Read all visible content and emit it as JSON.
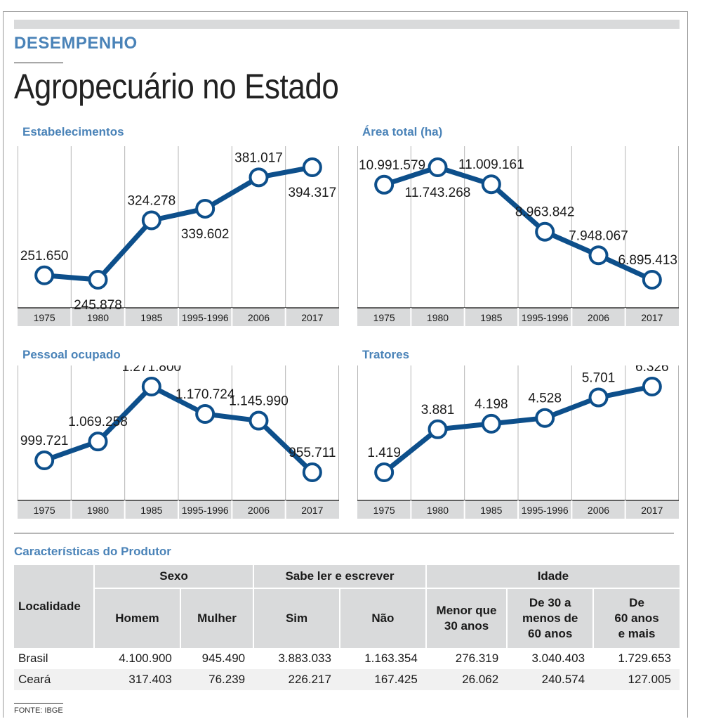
{
  "header": {
    "kicker": "DESEMPENHO",
    "title": "Agropecuário no Estado"
  },
  "colors": {
    "accent": "#4a83b8",
    "line": "#0d4f8b",
    "band": "#d9dadb"
  },
  "chart_data": [
    {
      "type": "line",
      "title": "Estabelecimentos",
      "categories": [
        "1975",
        "1980",
        "1985",
        "1995-1996",
        "2006",
        "2017"
      ],
      "values": [
        251650,
        245878,
        324278,
        339602,
        381017,
        394317
      ],
      "value_labels": [
        "251.650",
        "245.878",
        "324.278",
        "339.602",
        "381.017",
        "394.317"
      ],
      "label_pos": [
        "above",
        "below",
        "above",
        "below",
        "above",
        "below"
      ]
    },
    {
      "type": "line",
      "title": "Área total (ha)",
      "categories": [
        "1975",
        "1980",
        "1985",
        "1995-1996",
        "2006",
        "2017"
      ],
      "values": [
        10991579,
        11743268,
        11009161,
        8963842,
        7948067,
        6895413
      ],
      "value_labels": [
        "10.991.579",
        "11.743.268",
        "11.009.161",
        "8.963.842",
        "7.948.067",
        "6.895.413"
      ],
      "label_pos": [
        "above",
        "below",
        "above",
        "above",
        "above",
        "above"
      ]
    },
    {
      "type": "line",
      "title": "Pessoal ocupado",
      "categories": [
        "1975",
        "1980",
        "1985",
        "1995-1996",
        "2006",
        "2017"
      ],
      "values": [
        999721,
        1069258,
        1271800,
        1170724,
        1145990,
        955711
      ],
      "value_labels": [
        "999.721",
        "1.069.258",
        "1.271.800",
        "1.170.724",
        "1.145.990",
        "955.711"
      ],
      "label_pos": [
        "above",
        "above",
        "above",
        "above",
        "above",
        "above"
      ]
    },
    {
      "type": "line",
      "title": "Tratores",
      "categories": [
        "1975",
        "1980",
        "1985",
        "1995-1996",
        "2006",
        "2017"
      ],
      "values": [
        1419,
        3881,
        4198,
        4528,
        5701,
        6326
      ],
      "value_labels": [
        "1.419",
        "3.881",
        "4.198",
        "4.528",
        "5.701",
        "6.326"
      ],
      "label_pos": [
        "above",
        "above",
        "above",
        "above",
        "above",
        "above"
      ]
    }
  ],
  "table": {
    "title": "Características do Produtor",
    "loc_header": "Localidade",
    "groups": [
      "Sexo",
      "Sabe ler e escrever",
      "Idade"
    ],
    "subheaders": [
      [
        "Homem"
      ],
      [
        "Mulher"
      ],
      [
        "Sim"
      ],
      [
        "Não"
      ],
      [
        "Menor que",
        "30 anos"
      ],
      [
        "De 30 a",
        "menos de",
        "60 anos"
      ],
      [
        "De",
        "60 anos",
        "e mais"
      ]
    ],
    "rows": [
      {
        "name": "Brasil",
        "values": [
          "4.100.900",
          "945.490",
          "3.883.033",
          "1.163.354",
          "276.319",
          "3.040.403",
          "1.729.653"
        ]
      },
      {
        "name": "Ceará",
        "values": [
          "317.403",
          "76.239",
          "226.217",
          "167.425",
          "26.062",
          "240.574",
          "127.005"
        ]
      }
    ]
  },
  "source": "FONTE: IBGE"
}
